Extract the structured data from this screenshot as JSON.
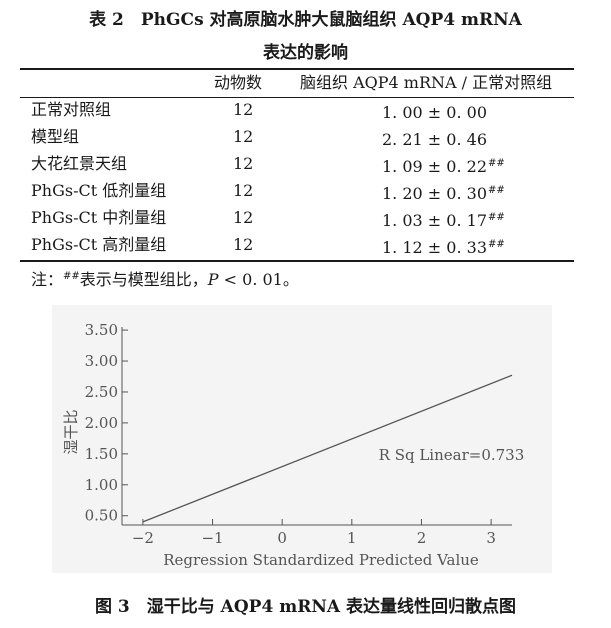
{
  "table": {
    "title_line1": "表 2　PhGCs 对高原脑水肿大鼠脑组织 AQP4 mRNA",
    "title_line2": "表达的影响",
    "headers": [
      "",
      "动物数",
      "脑组织 AQP4 mRNA / 正常对照组"
    ],
    "rows": [
      {
        "group": "正常对照组",
        "n": "12",
        "value": "1. 00 ± 0. 00",
        "mark": ""
      },
      {
        "group": "模型组",
        "n": "12",
        "value": "2. 21 ± 0. 46",
        "mark": ""
      },
      {
        "group": "大花红景天组",
        "n": "12",
        "value": "1. 09 ± 0. 22",
        "mark": "##"
      },
      {
        "group": "PhGs-Ct 低剂量组",
        "n": "12",
        "value": "1. 20 ± 0. 30",
        "mark": "##"
      },
      {
        "group": "PhGs-Ct 中剂量组",
        "n": "12",
        "value": "1. 03 ± 0. 17",
        "mark": "##"
      },
      {
        "group": "PhGs-Ct 高剂量组",
        "n": "12",
        "value": "1. 12 ± 0. 33",
        "mark": "##"
      }
    ],
    "note_prefix": "注：",
    "note_mark": "##",
    "note_text": "表示与模型组比，",
    "note_p": "P",
    "note_tail": " < 0. 01。"
  },
  "chart_data": {
    "type": "line",
    "xlabel": "Regression Standardized Predicted Value",
    "ylabel": "湿干比",
    "xlim": [
      -2.3,
      3.3
    ],
    "ylim": [
      0.35,
      3.55
    ],
    "x_ticks": [
      -2,
      -1,
      0,
      1,
      2,
      3
    ],
    "x_tick_labels": [
      "−2",
      "−1",
      "0",
      "1",
      "2",
      "3"
    ],
    "y_ticks": [
      0.5,
      1.0,
      1.5,
      2.0,
      2.5,
      3.0,
      3.5
    ],
    "y_tick_labels": [
      "0.50",
      "1.00",
      "1.50",
      "2.00",
      "2.50",
      "3.00",
      "3.50"
    ],
    "series": [
      {
        "x": [
          -2,
          3.3
        ],
        "y": [
          0.4,
          2.77
        ]
      }
    ],
    "annotation": "R Sq Linear=0.733",
    "annotation_at": {
      "x": 2.0,
      "y": 1.5
    }
  },
  "figure": {
    "caption": "图 3　湿干比与 AQP4 mRNA 表达量线性回归散点图"
  },
  "colors": {
    "text": "#1a1a1a",
    "chart_ink": "#555555",
    "chart_bg": "#f4f4f4"
  }
}
